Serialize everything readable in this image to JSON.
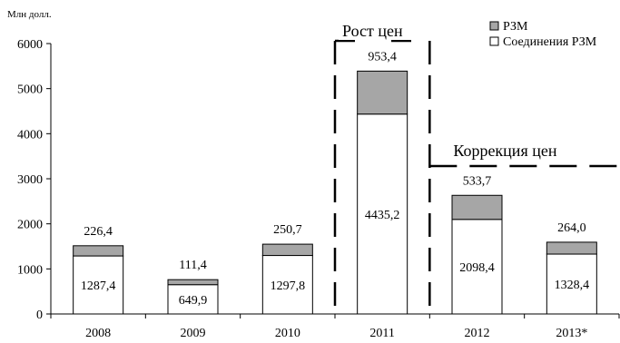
{
  "chart_data": {
    "type": "bar",
    "stacked": true,
    "ylabel": "Млн долл.",
    "ylim": [
      0,
      6000
    ],
    "yticks": [
      "0",
      "1000",
      "2000",
      "3000",
      "4000",
      "5000",
      "6000"
    ],
    "categories": [
      "2008",
      "2009",
      "2010",
      "2011",
      "2012",
      "2013*"
    ],
    "series": [
      {
        "name": "Соединения РЗМ",
        "color": "#ffffff",
        "values": [
          1287.4,
          649.9,
          1297.8,
          4435.2,
          2098.4,
          1328.4
        ],
        "labels": [
          "1287,4",
          "649,9",
          "1297,8",
          "4435,2",
          "2098,4",
          "1328,4"
        ]
      },
      {
        "name": "РЗМ",
        "color": "#a6a6a6",
        "values": [
          226.4,
          111.4,
          250.7,
          953.4,
          533.7,
          264.0
        ],
        "labels": [
          "226,4",
          "111,4",
          "250,7",
          "953,4",
          "533,7",
          "264,0"
        ]
      }
    ],
    "legend_position": "top-right",
    "grid": false,
    "annotations": [
      "Рост цен",
      "Коррекция цен"
    ]
  }
}
